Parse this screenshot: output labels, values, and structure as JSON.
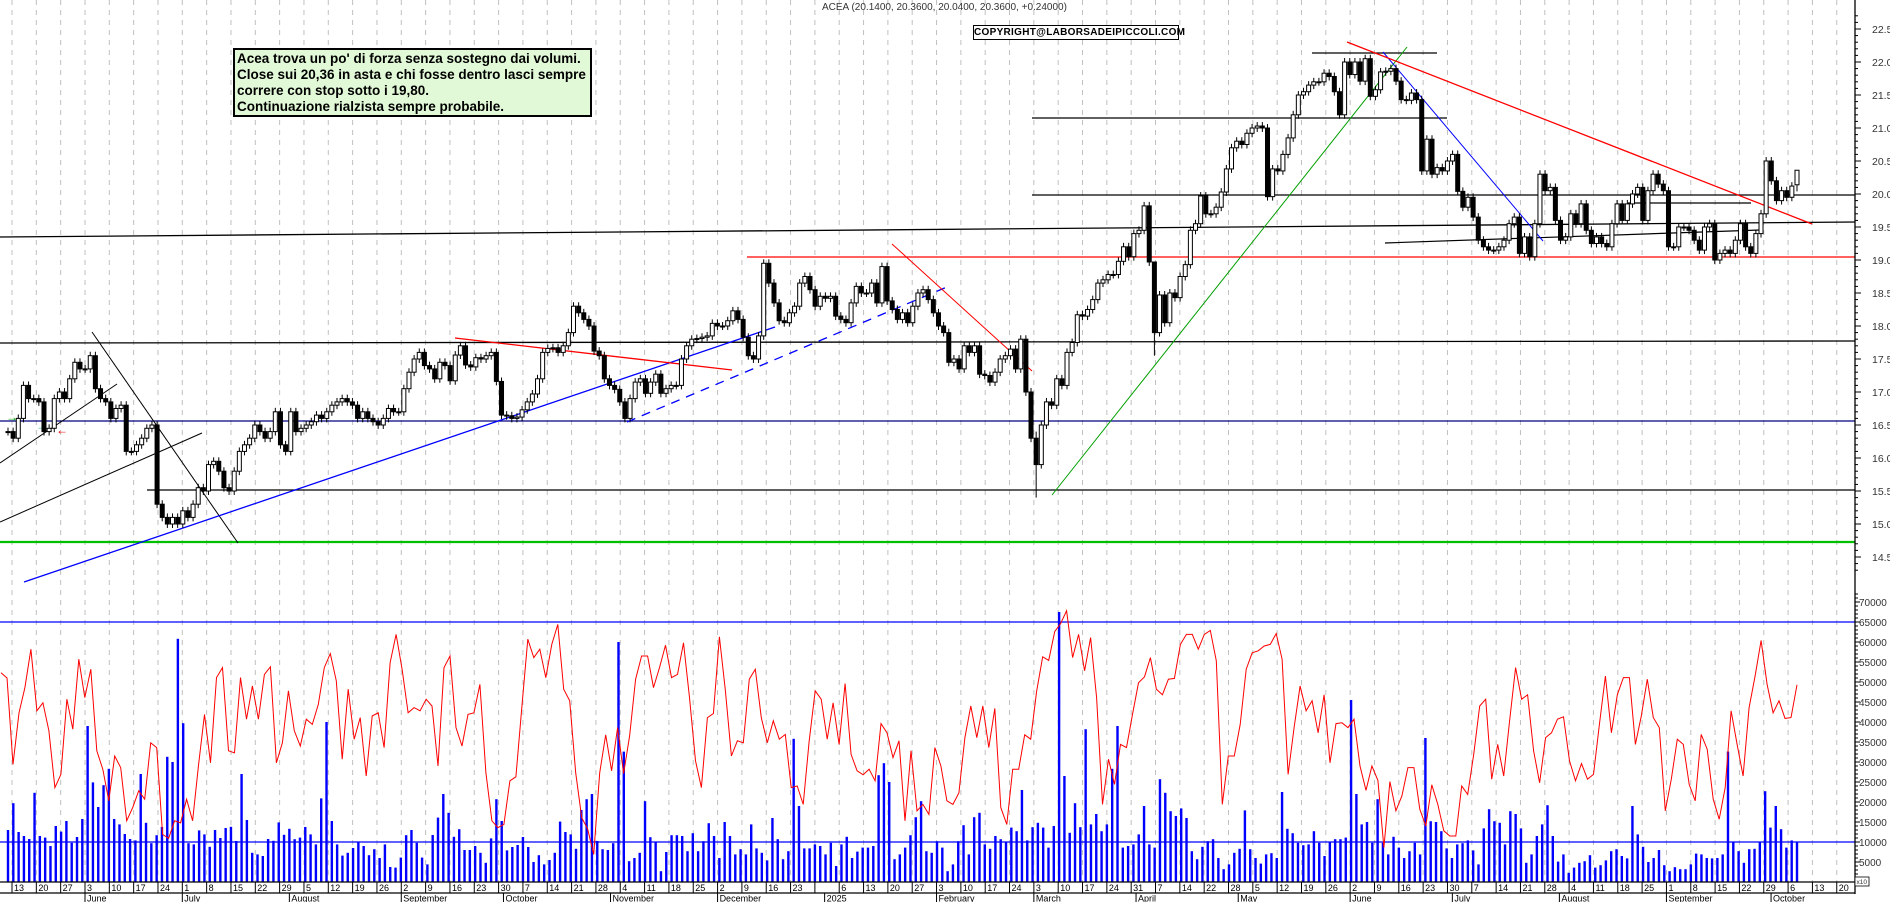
{
  "title": "ACEA (20.1400, 20.3600, 20.0400, 20.3600, +0.24000)",
  "copyright": "COPYRIGHT@LABORSADEIPICCOLI.COM",
  "comment": {
    "lines": [
      "Acea trova un po' di forza senza sostegno dai volumi.",
      "Close sui 20,36 in asta e chi fosse dentro lasci sempre",
      "correre con stop sotto i 19,80.",
      "Continuazione rialzista sempre probabile."
    ]
  },
  "colors": {
    "candle_up": "#ffffff",
    "candle_down": "#000000",
    "volume_bars": "#0000ff",
    "volume_average": "#ff0000",
    "support_red": "#ff0000",
    "support_green": "#00c000",
    "trend_blue": "#0000ff",
    "trend_green": "#00a000",
    "level_navy": "#000080",
    "grid": "#c0c0c0"
  },
  "axis_multiplier": "x10",
  "x_axis": {
    "week_labels": [
      "13",
      "20",
      "27",
      "3",
      "10",
      "17",
      "24",
      "1",
      "8",
      "15",
      "22",
      "29",
      "5",
      "12",
      "19",
      "26",
      "2",
      "9",
      "16",
      "23",
      "30",
      "7",
      "14",
      "21",
      "28",
      "4",
      "11",
      "18",
      "25",
      "2",
      "9",
      "16",
      "23",
      "",
      "6",
      "13",
      "20",
      "27",
      "3",
      "10",
      "17",
      "24",
      "3",
      "10",
      "17",
      "24",
      "31",
      "7",
      "14",
      "22",
      "28",
      "5",
      "12",
      "19",
      "26",
      "2",
      "9",
      "16",
      "23",
      "30",
      "7",
      "14",
      "21",
      "28",
      "4",
      "11",
      "18",
      "25",
      "1",
      "8",
      "15",
      "22",
      "29",
      "6",
      "13",
      "20"
    ],
    "month_labels": [
      "June",
      "July",
      "August",
      "September",
      "October",
      "November",
      "December",
      "2025",
      "February",
      "March",
      "April",
      "May",
      "June",
      "July",
      "August",
      "September",
      "October"
    ]
  },
  "chart_data": [
    {
      "type": "candlestick",
      "series": "ACEA",
      "ylim": [
        14.3,
        22.7
      ],
      "ytick_labels": [
        "14.5",
        "15.0",
        "15.5",
        "16.0",
        "16.5",
        "17.0",
        "17.5",
        "18.0",
        "18.5",
        "19.0",
        "19.5",
        "20.0",
        "20.5",
        "21.0",
        "21.5",
        "22.0",
        "22.5"
      ],
      "grid": true,
      "bars": [
        16.4,
        16.3,
        16.6,
        17.1,
        16.9,
        16.9,
        16.85,
        16.4,
        16.45,
        16.9,
        17.0,
        16.9,
        17.2,
        17.45,
        17.35,
        17.35,
        17.55,
        17.05,
        16.9,
        16.85,
        16.6,
        16.75,
        16.8,
        16.1,
        16.1,
        16.2,
        16.3,
        16.45,
        16.5,
        15.3,
        15.1,
        15.0,
        15.1,
        15.0,
        15.2,
        15.1,
        15.3,
        15.55,
        15.5,
        15.9,
        15.95,
        15.8,
        15.55,
        15.5,
        15.8,
        16.1,
        16.2,
        16.3,
        16.5,
        16.4,
        16.3,
        16.4,
        16.7,
        16.2,
        16.1,
        16.7,
        16.4,
        16.45,
        16.5,
        16.55,
        16.65,
        16.6,
        16.7,
        16.8,
        16.85,
        16.9,
        16.85,
        16.8,
        16.6,
        16.7,
        16.6,
        16.55,
        16.5,
        16.6,
        16.75,
        16.7,
        16.7,
        17.05,
        17.3,
        17.5,
        17.6,
        17.4,
        17.35,
        17.2,
        17.45,
        17.4,
        17.17,
        17.56,
        17.7,
        17.41,
        17.38,
        17.52,
        17.5,
        17.55,
        17.6,
        17.16,
        16.65,
        16.64,
        16.6,
        16.62,
        16.73,
        16.85,
        16.97,
        17.2,
        17.6,
        17.66,
        17.67,
        17.6,
        17.7,
        17.9,
        18.3,
        18.2,
        18.1,
        18.0,
        17.62,
        17.55,
        17.2,
        17.1,
        17.04,
        16.85,
        16.6,
        16.9,
        17.15,
        17.2,
        16.98,
        17.15,
        17.27,
        16.98,
        17.05,
        17.1,
        17.1,
        17.5,
        17.7,
        17.8,
        17.81,
        17.83,
        17.85,
        18.04,
        18.0,
        18.0,
        18.08,
        18.23,
        18.1,
        17.83,
        17.55,
        17.5,
        17.85,
        18.95,
        18.65,
        18.35,
        18.08,
        18.05,
        18.2,
        18.3,
        18.65,
        18.75,
        18.55,
        18.3,
        18.45,
        18.42,
        18.45,
        18.15,
        18.1,
        18.05,
        18.35,
        18.6,
        18.5,
        18.5,
        18.65,
        18.35,
        18.9,
        18.38,
        18.25,
        18.1,
        18.2,
        18.05,
        18.3,
        18.5,
        18.55,
        18.4,
        18.2,
        18.0,
        17.9,
        17.45,
        17.5,
        17.35,
        17.7,
        17.6,
        17.7,
        17.27,
        17.25,
        17.15,
        17.3,
        17.5,
        17.55,
        17.65,
        17.35,
        17.8,
        17.0,
        16.3,
        {
          "c": 15.9,
          "l": 15.4,
          "h": 16.4
        },
        16.5,
        16.85,
        16.8,
        17.2,
        17.1,
        17.6,
        17.75,
        18.17,
        18.15,
        18.25,
        18.4,
        18.65,
        18.7,
        18.78,
        18.78,
        18.98,
        19.2,
        19.05,
        19.4,
        19.45,
        19.82,
        18.97,
        {
          "c": 17.9,
          "l": 17.55,
          "h": 18.3
        },
        18.47,
        18.05,
        18.5,
        18.43,
        18.75,
        18.93,
        19.45,
        19.55,
        19.97,
        19.7,
        19.7,
        19.8,
        20.03,
        20.38,
        20.7,
        20.8,
        20.75,
        20.92,
        21.0,
        21.03,
        21.0,
        19.96,
        20.38,
        20.35,
        20.6,
        20.85,
        21.2,
        21.5,
        21.55,
        21.65,
        21.7,
        21.7,
        21.83,
        21.78,
        21.55,
        21.2,
        22.0,
        21.81,
        22.0,
        21.71,
        22.05,
        21.48,
        21.58,
        21.85,
        21.86,
        21.9,
        21.71,
        21.43,
        21.42,
        21.53,
        21.43,
        20.35,
        20.83,
        20.3,
        20.4,
        20.35,
        20.5,
        20.6,
        20.04,
        19.8,
        19.95,
        19.65,
        19.3,
        19.2,
        19.15,
        19.15,
        19.2,
        19.3,
        19.55,
        19.65,
        19.1,
        19.35,
        19.05,
        19.55,
        20.3,
        20.05,
        20.1,
        19.6,
        19.3,
        19.35,
        19.7,
        19.55,
        19.85,
        19.45,
        19.25,
        19.35,
        19.25,
        19.2,
        19.55,
        19.85,
        19.6,
        19.85,
        20.0,
        20.1,
        19.6,
        20.05,
        20.3,
        20.15,
        20.05,
        19.2,
        19.2,
        19.5,
        19.5,
        19.45,
        19.3,
        19.15,
        19.5,
        19.55,
        19.0,
        19.1,
        19.15,
        19.1,
        19.3,
        19.55,
        19.2,
        19.1,
        19.4,
        19.7,
        20.5,
        20.2,
        19.9,
        20.05,
        19.95,
        20.12,
        {
          "o": 20.14,
          "h": 20.36,
          "l": 20.04,
          "c": 20.36
        }
      ]
    },
    {
      "type": "bar",
      "ylim": [
        0,
        72000
      ],
      "ytick_labels": [
        "5000",
        "10000",
        "15000",
        "20000",
        "25000",
        "30000",
        "35000",
        "40000",
        "45000",
        "50000",
        "55000",
        "60000",
        "65000",
        "70000"
      ],
      "reference_lines": [
        65000,
        10000
      ],
      "volume": [
        13000,
        19700,
        12500,
        11500,
        10750,
        22300,
        11500,
        11100,
        9000,
        14000,
        12600,
        15250,
        9800,
        11250,
        15750,
        39000,
        24900,
        18750,
        24200,
        28300,
        15750,
        14400,
        12000,
        10750,
        10400,
        27000,
        14800,
        9700,
        11700,
        13750,
        31300,
        30000,
        60800,
        39700,
        9700,
        9400,
        12900,
        11900,
        8800,
        13000,
        11000,
        13500,
        13800,
        10250,
        27000,
        15500,
        7300,
        6900,
        6500,
        10750,
        10300,
        14900,
        11800,
        13300,
        10700,
        11100,
        13750,
        11900,
        9400,
        20900,
        40000,
        15250,
        9400,
        6600,
        7300,
        8500,
        10000,
        9000,
        6700,
        8200,
        6000,
        9400,
        3750,
        3600,
        6100,
        11700,
        13000,
        9800,
        6100,
        4400,
        11750,
        16100,
        22000,
        17300,
        11300,
        13200,
        8000,
        8000,
        9000,
        7300,
        4800,
        10900,
        20700,
        15250,
        7900,
        8750,
        9250,
        11250,
        8750,
        5000,
        6700,
        4400,
        5500,
        7300,
        15100,
        12500,
        11900,
        8300,
        18000,
        20700,
        22000,
        10250,
        8200,
        8000,
        9700,
        60000,
        32600,
        5200,
        6000,
        7300,
        20200,
        11200,
        10000,
        2700,
        7500,
        11700,
        11700,
        11500,
        7700,
        12200,
        7700,
        10200,
        14700,
        11500,
        6000,
        15000,
        11500,
        6900,
        8200,
        6900,
        14400,
        8400,
        7300,
        5400,
        16000,
        10700,
        5700,
        7700,
        35800,
        19000,
        8400,
        8400,
        9400,
        9000,
        6900,
        9800,
        4000,
        9400,
        11300,
        6000,
        7600,
        8600,
        8600,
        9000,
        26700,
        29700,
        25000,
        5700,
        6900,
        8600,
        11700,
        16200,
        20200,
        7700,
        7300,
        10200,
        8600,
        2700,
        4400,
        10200,
        14200,
        6900,
        16200,
        17300,
        9400,
        8300,
        11500,
        10700,
        10000,
        13600,
        12700,
        23000,
        10400,
        13700,
        14800,
        13600,
        8600,
        14000,
        67500,
        26500,
        12300,
        19700,
        13700,
        38200,
        14400,
        17000,
        12700,
        14400,
        28300,
        39000,
        8600,
        9000,
        9400,
        11900,
        19000,
        9400,
        8600,
        25700,
        22300,
        17700,
        16500,
        18400,
        16000,
        7700,
        5700,
        8800,
        10200,
        10700,
        6000,
        3200,
        4400,
        7300,
        8300,
        17900,
        8200,
        6000,
        4600,
        6900,
        7200,
        6000,
        22500,
        13300,
        12200,
        9800,
        9200,
        9400,
        12700,
        9800,
        6500,
        10000,
        10700,
        10700,
        11100,
        45500,
        22000,
        14400,
        15000,
        9800,
        20700,
        9800,
        6900,
        11300,
        8600,
        6000,
        7700,
        9800,
        6900,
        36000,
        15200,
        15000,
        12700,
        8400,
        6000,
        9400,
        9700,
        10400,
        7900,
        4400,
        13400,
        18200,
        15200,
        14800,
        9400,
        17700,
        17000,
        13400,
        4800,
        6900,
        11500,
        14400,
        19200,
        11500,
        5100,
        6900,
        2300,
        3600,
        4800,
        5200,
        6700,
        3600,
        4200,
        5400,
        7700,
        8200,
        6500,
        5900,
        19000,
        11900,
        8800,
        5000,
        6000,
        8000,
        4200,
        2700,
        3700,
        3200,
        3200,
        4400,
        7100,
        6900,
        6000,
        5900,
        6000,
        6900,
        32600,
        10000,
        7700,
        4800,
        8200,
        8300,
        10000,
        22700,
        13600,
        19000,
        13200,
        8600,
        10400,
        10000
      ],
      "average": [
        52300,
        51000,
        29400,
        42300,
        48600,
        58200,
        42800,
        44800,
        37800,
        23600,
        26900,
        45700,
        38200,
        55700,
        46100,
        53200,
        32800,
        28200,
        20300,
        31500,
        28600,
        15300,
        18600,
        22800,
        20700,
        34800,
        33600,
        11900,
        10900,
        15300,
        14800,
        20700,
        15300,
        29400,
        41900,
        29800,
        51100,
        53600,
        32800,
        32300,
        51100,
        40700,
        49000,
        40700,
        51900,
        53800,
        29800,
        34800,
        47800,
        37800,
        34000,
        40700,
        39400,
        44400,
        53600,
        57100,
        50300,
        30700,
        48200,
        35700,
        41100,
        26500,
        41500,
        42300,
        33600,
        54800,
        61900,
        53200,
        42300,
        43600,
        42800,
        45700,
        44000,
        29000,
        53600,
        56500,
        38600,
        34000,
        41900,
        42300,
        49400,
        27300,
        15300,
        13600,
        14400,
        25300,
        26300,
        43600,
        60700,
        56100,
        58200,
        51100,
        59400,
        64400,
        48200,
        45300,
        27300,
        16100,
        13200,
        6900,
        27300,
        36800,
        27800,
        38600,
        27100,
        36500,
        50700,
        56500,
        56500,
        48600,
        53600,
        59200,
        51100,
        51900,
        59800,
        46100,
        30300,
        23600,
        41100,
        42100,
        61300,
        47800,
        31500,
        35300,
        34800,
        50700,
        53200,
        41100,
        34800,
        40300,
        35700,
        36900,
        23600,
        24000,
        19400,
        35300,
        47800,
        45700,
        35700,
        44800,
        34400,
        49600,
        31900,
        27800,
        26800,
        28200,
        25300,
        39600,
        37300,
        31100,
        35300,
        15300,
        32800,
        17800,
        19400,
        16900,
        33600,
        29000,
        20300,
        19400,
        22300,
        36100,
        44000,
        36100,
        44000,
        33600,
        43400,
        18600,
        14400,
        28200,
        28200,
        36800,
        35700,
        47800,
        56300,
        55400,
        62600,
        64600,
        67800,
        56100,
        61900,
        52800,
        61100,
        46100,
        19400,
        30700,
        24400,
        34400,
        33600,
        41900,
        49800,
        51300,
        56100,
        48200,
        46800,
        50700,
        50900,
        59400,
        61900,
        61900,
        58200,
        61900,
        62900,
        55300,
        19400,
        31500,
        31500,
        39400,
        53200,
        57300,
        57800,
        59000,
        59400,
        62100,
        55700,
        26900,
        38600,
        49000,
        42800,
        45300,
        37300,
        46800,
        29800,
        39600,
        39800,
        38600,
        40700,
        29000,
        22900,
        29000,
        25400,
        8600,
        25100,
        17800,
        21500,
        28600,
        28600,
        18200,
        14000,
        24300,
        19400,
        12800,
        11500,
        11500,
        24000,
        21900,
        31900,
        44000,
        45700,
        25700,
        34400,
        26500,
        40300,
        53600,
        45700,
        46800,
        32800,
        24800,
        36100,
        37300,
        40700,
        41300,
        30300,
        25300,
        29600,
        25700,
        26900,
        39400,
        51500,
        37300,
        46900,
        51100,
        51100,
        34400,
        41500,
        50700,
        41100,
        38600,
        17800,
        25700,
        35700,
        34400,
        24400,
        20300,
        36900,
        33200,
        20700,
        15700,
        23600,
        42800,
        34400,
        26500,
        43600,
        51500,
        60400,
        49400,
        42300,
        45300,
        40900,
        41100,
        49300
      ]
    }
  ]
}
